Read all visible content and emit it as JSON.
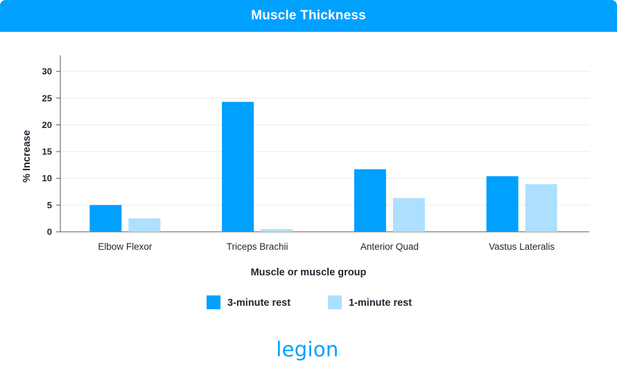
{
  "header": {
    "title": "Muscle Thickness"
  },
  "brand": {
    "logo_text": "legion",
    "mark": "."
  },
  "colors": {
    "header_bg": "#00a0ff",
    "series_3min": "#00a0ff",
    "series_1min": "#addfff",
    "brand": "#00a0ff"
  },
  "chart_data": {
    "type": "bar",
    "title": "Muscle Thickness",
    "xlabel": "Muscle or muscle group",
    "ylabel": "% Increase",
    "categories": [
      "Elbow Flexor",
      "Triceps Brachii",
      "Anterior Quad",
      "Vastus Lateralis"
    ],
    "series": [
      {
        "name": "3-minute rest",
        "values": [
          5.0,
          24.3,
          11.7,
          10.4
        ]
      },
      {
        "name": "1-minute rest",
        "values": [
          2.5,
          0.5,
          6.3,
          8.9
        ]
      }
    ],
    "ylim": [
      0,
      33
    ],
    "yticks": [
      0,
      5,
      10,
      15,
      20,
      25,
      30
    ],
    "grid": true,
    "legend_position": "bottom-center"
  }
}
